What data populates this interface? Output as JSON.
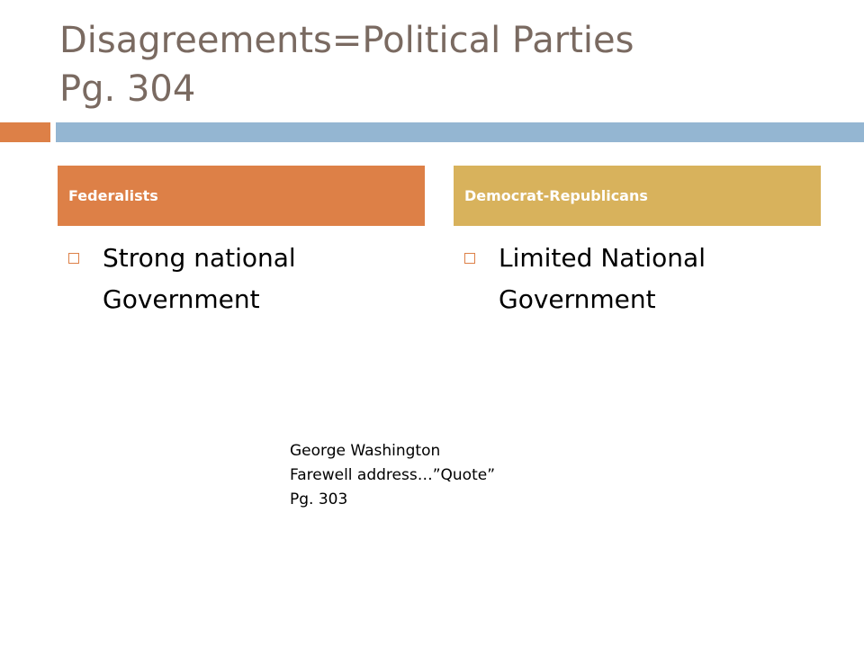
{
  "slide": {
    "title_line1": "Disagreements=Political Parties",
    "title_line2": "Pg. 304"
  },
  "columns": [
    {
      "header": "Federalists",
      "bullet": "Strong national Government"
    },
    {
      "header": "Democrat-Republicans",
      "bullet": "Limited National Government"
    }
  ],
  "note": "George Washington Farewell address…”Quote” Pg. 303",
  "colors": {
    "title": "#7a6a61",
    "orange_accent": "#dd8047",
    "blue_accent": "#94b6d2",
    "gold_accent": "#d8b25c"
  },
  "icons": {
    "bullet": "hollow-square-icon"
  }
}
